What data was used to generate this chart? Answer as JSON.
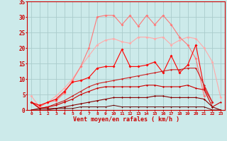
{
  "bg_color": "#cceaea",
  "grid_color": "#aacccc",
  "xlabel": "Vent moyen/en rafales ( km/h )",
  "x": [
    0,
    1,
    2,
    3,
    4,
    5,
    6,
    7,
    8,
    9,
    10,
    11,
    12,
    13,
    14,
    15,
    16,
    17,
    18,
    19,
    20,
    21,
    22,
    23
  ],
  "ylim": [
    0,
    35
  ],
  "yticks": [
    0,
    5,
    10,
    15,
    20,
    25,
    30,
    35
  ],
  "series": [
    {
      "color": "#ffaaaa",
      "linewidth": 0.8,
      "markersize": 2.0,
      "y": [
        4.5,
        1.0,
        2.5,
        4.5,
        7.0,
        10.0,
        14.0,
        17.5,
        21.0,
        22.5,
        23.0,
        22.0,
        21.5,
        23.5,
        23.5,
        23.0,
        23.5,
        21.0,
        22.5,
        23.5,
        23.0,
        20.0,
        15.5,
        4.0
      ]
    },
    {
      "color": "#ff7777",
      "linewidth": 0.8,
      "markersize": 2.0,
      "y": [
        2.5,
        1.0,
        2.5,
        3.0,
        5.5,
        9.5,
        14.0,
        20.0,
        30.0,
        30.5,
        30.5,
        27.5,
        30.5,
        27.0,
        30.5,
        27.5,
        30.5,
        27.5,
        23.5,
        21.0,
        16.5,
        4.5,
        null,
        null
      ]
    },
    {
      "color": "#ff0000",
      "linewidth": 0.8,
      "markersize": 2.0,
      "y": [
        2.5,
        1.5,
        2.5,
        3.5,
        6.0,
        9.0,
        9.5,
        10.5,
        13.5,
        14.0,
        14.0,
        19.5,
        14.0,
        14.0,
        14.5,
        15.5,
        12.0,
        17.5,
        12.0,
        14.5,
        21.0,
        7.0,
        2.5,
        null
      ]
    },
    {
      "color": "#cc2222",
      "linewidth": 0.8,
      "markersize": 1.5,
      "y": [
        2.5,
        0.5,
        1.0,
        2.0,
        3.0,
        4.5,
        6.0,
        7.5,
        8.5,
        9.0,
        9.5,
        10.0,
        10.5,
        11.0,
        11.5,
        12.0,
        12.5,
        13.0,
        13.0,
        13.5,
        13.5,
        8.0,
        2.5,
        null
      ]
    },
    {
      "color": "#cc0000",
      "linewidth": 0.8,
      "markersize": 1.5,
      "y": [
        2.5,
        0.5,
        1.0,
        1.5,
        2.5,
        3.5,
        5.0,
        6.0,
        7.0,
        7.5,
        7.5,
        7.5,
        7.5,
        7.5,
        8.0,
        8.0,
        7.5,
        7.5,
        7.5,
        8.0,
        7.0,
        6.5,
        1.0,
        2.5
      ]
    },
    {
      "color": "#880000",
      "linewidth": 0.8,
      "markersize": 1.5,
      "y": [
        0.0,
        0.5,
        0.5,
        0.5,
        1.0,
        1.5,
        2.0,
        2.5,
        3.0,
        3.5,
        4.0,
        4.0,
        4.0,
        4.0,
        4.0,
        4.5,
        4.5,
        4.0,
        4.0,
        4.0,
        4.0,
        3.5,
        1.0,
        0.0
      ]
    },
    {
      "color": "#660000",
      "linewidth": 0.7,
      "markersize": 1.0,
      "y": [
        0.0,
        0.0,
        0.0,
        0.5,
        0.5,
        0.5,
        1.0,
        1.0,
        1.0,
        1.0,
        1.5,
        1.0,
        1.0,
        1.0,
        1.0,
        1.0,
        1.0,
        1.0,
        1.0,
        1.0,
        1.0,
        1.0,
        0.0,
        0.0
      ]
    }
  ]
}
